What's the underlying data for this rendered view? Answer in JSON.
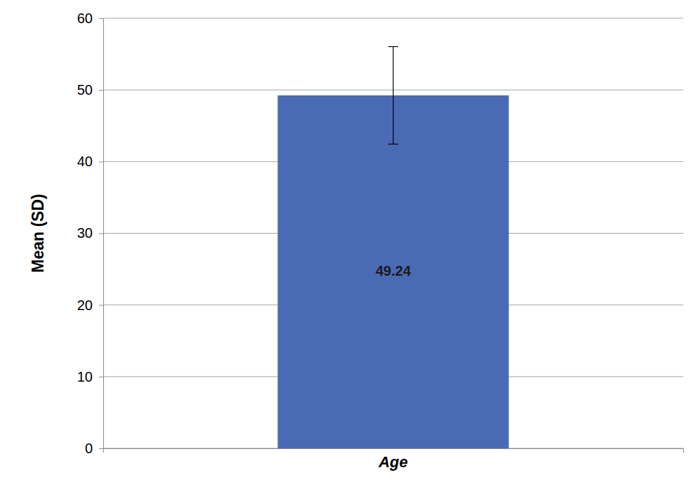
{
  "chart_data": {
    "type": "bar",
    "ylabel": "Mean (SD)",
    "categories": [
      "Age"
    ],
    "values": [
      49.24
    ],
    "error": [
      6.8
    ],
    "color": "#4a6ab3",
    "ylim": [
      0,
      60
    ],
    "yticks": [
      0,
      10,
      20,
      30,
      40,
      50,
      60
    ],
    "grid": true,
    "data_labels": true
  }
}
